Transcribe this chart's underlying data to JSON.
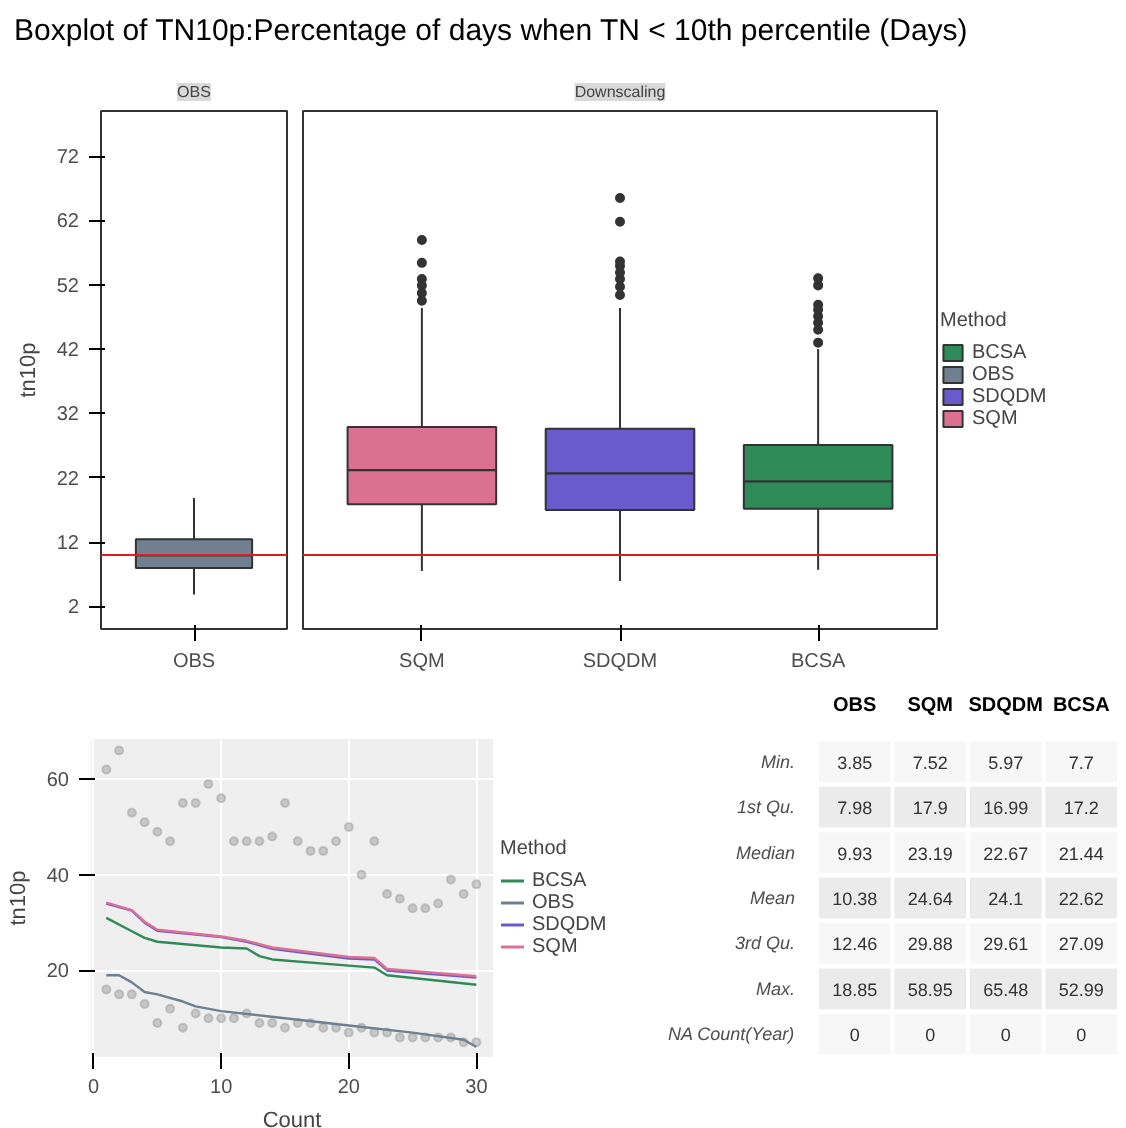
{
  "chart_data": [
    {
      "type": "box",
      "title": "Boxplot of TN10p:Percentage of days when TN < 10th percentile (Days)",
      "ylabel": "tn10p",
      "annotations": [
        "OBS",
        "Downscaling"
      ],
      "categories": [
        "OBS",
        "SQM",
        "SDQDM",
        "BCSA"
      ],
      "ylim": [
        -1.5,
        79
      ],
      "yticks": [
        2,
        12,
        22,
        32,
        42,
        52,
        62,
        72
      ],
      "grid": false,
      "legend": "right",
      "legend_title": "Method",
      "ref_lines": [
        {
          "axis": "y",
          "value": 10,
          "color": "#e31a1c"
        }
      ],
      "series": [
        {
          "name": "BCSA",
          "color": "#2e8b57",
          "boxes": [
            null,
            null,
            null,
            {
              "low": 7.7,
              "q1": 17.2,
              "median": 21.44,
              "q3": 27.09,
              "high": 42,
              "outliers": [
                43,
                45,
                46.1,
                47.1,
                48.1,
                48.9,
                51.9,
                52.99
              ]
            }
          ]
        },
        {
          "name": "OBS",
          "color": "#708090",
          "boxes": [
            {
              "low": 3.85,
              "q1": 7.98,
              "median": 9.93,
              "q3": 12.46,
              "high": 18.85
            },
            null,
            null,
            null
          ]
        },
        {
          "name": "SDQDM",
          "color": "#6a5acd",
          "boxes": [
            null,
            null,
            {
              "low": 5.97,
              "q1": 16.99,
              "median": 22.67,
              "q3": 29.61,
              "high": 48.4,
              "outliers": [
                50.4,
                51.7,
                52.9,
                53.9,
                54.9,
                55.6,
                61.8,
                65.48
              ]
            },
            null
          ]
        },
        {
          "name": "SQM",
          "color": "#db7093",
          "boxes": [
            null,
            {
              "low": 7.52,
              "q1": 17.9,
              "median": 23.19,
              "q3": 29.88,
              "high": 48.4,
              "outliers": [
                49.5,
                50.7,
                51.9,
                52.9,
                55.4,
                58.95
              ]
            },
            null,
            null
          ]
        }
      ]
    },
    {
      "type": "line",
      "xlabel": "Count",
      "ylabel": "tn10p",
      "xlim": [
        -0.2,
        31.3
      ],
      "ylim": [
        1.9,
        68.4
      ],
      "xticks": [
        0,
        10,
        20,
        30
      ],
      "yticks": [
        20,
        40,
        60
      ],
      "grid": true,
      "legend": "right",
      "legend_title": "Method",
      "series": [
        {
          "type": "scatter",
          "color": "#a0a0a0",
          "x": [
            1,
            1,
            2,
            2,
            3,
            3,
            4,
            4,
            5,
            5,
            6,
            6,
            7,
            7,
            8,
            8,
            9,
            9,
            10,
            10,
            11,
            11,
            12,
            12,
            13,
            13,
            14,
            14,
            15,
            15,
            16,
            16,
            17,
            17,
            18,
            18,
            19,
            19,
            20,
            20,
            21,
            21,
            22,
            22,
            23,
            23,
            24,
            24,
            25,
            25,
            26,
            26,
            27,
            27,
            28,
            28,
            29,
            29,
            30,
            30
          ],
          "values": [
            62,
            16,
            66,
            15,
            53,
            15,
            51,
            13,
            49,
            9,
            47,
            12,
            55,
            8,
            55,
            11,
            59,
            10,
            56,
            10,
            47,
            10,
            47,
            11,
            47,
            9,
            48,
            9,
            55,
            8,
            47,
            9,
            45,
            9,
            45,
            8,
            47,
            8,
            50,
            7,
            40,
            8,
            47,
            7,
            36,
            7,
            35,
            6,
            33,
            6,
            33,
            6,
            34,
            6,
            39,
            6,
            36,
            5,
            38,
            5
          ]
        },
        {
          "name": "BCSA",
          "color": "#2e8b57",
          "x": [
            1,
            3,
            4,
            5,
            10,
            12,
            13,
            14,
            20,
            22,
            23,
            30
          ],
          "values": [
            31,
            28.2,
            26.8,
            26,
            24.8,
            24.6,
            23,
            22.3,
            21,
            20.6,
            19,
            17
          ]
        },
        {
          "name": "OBS",
          "color": "#708090",
          "x": [
            1,
            2,
            3,
            4,
            5,
            7,
            8,
            10,
            15,
            20,
            25,
            29,
            30
          ],
          "values": [
            19,
            19,
            17.5,
            15.5,
            15,
            13.5,
            12.5,
            11.5,
            10,
            8.5,
            7,
            5.5,
            4
          ]
        },
        {
          "name": "SDQDM",
          "color": "#6a5acd",
          "x": [
            1,
            3,
            4,
            5,
            10,
            12,
            14,
            20,
            22,
            23,
            30
          ],
          "values": [
            34,
            32.5,
            30,
            28.3,
            27,
            26,
            24.5,
            22.5,
            22.3,
            20,
            18.5
          ]
        },
        {
          "name": "SQM",
          "color": "#db7093",
          "x": [
            1,
            3,
            4,
            5,
            10,
            12,
            14,
            20,
            22,
            23,
            30
          ],
          "values": [
            34.2,
            32.6,
            30.2,
            28.5,
            27.1,
            26.2,
            24.8,
            22.8,
            22.6,
            20.3,
            18.8
          ]
        }
      ]
    },
    {
      "type": "heatmap",
      "categories": [
        "OBS",
        "SQM",
        "SDQDM",
        "BCSA"
      ],
      "y_categories": [
        "Min.",
        "1st Qu.",
        "Median",
        "Mean",
        "3rd Qu.",
        "Max.",
        "NA Count(Year)"
      ],
      "data_labels": true,
      "cells": [
        [
          3.85,
          7.52,
          5.97,
          7.7
        ],
        [
          7.98,
          17.9,
          16.99,
          17.2
        ],
        [
          9.93,
          23.19,
          22.67,
          21.44
        ],
        [
          10.38,
          24.64,
          24.1,
          22.62
        ],
        [
          12.46,
          29.88,
          29.61,
          27.09
        ],
        [
          18.85,
          58.95,
          65.48,
          52.99
        ],
        [
          0,
          0,
          0,
          0
        ]
      ]
    }
  ]
}
